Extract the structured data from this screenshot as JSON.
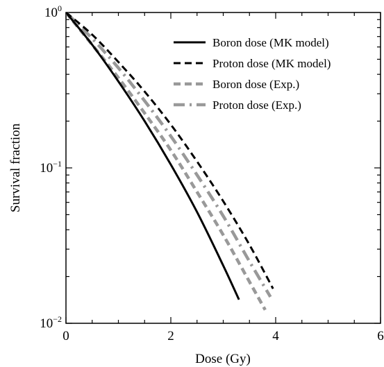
{
  "chart_data": {
    "type": "line",
    "title": "",
    "xlabel": "Dose (Gy)",
    "ylabel": "Survival fraction",
    "xlim": [
      0,
      6
    ],
    "ylim": [
      0.01,
      1
    ],
    "yscale": "log",
    "grid": false,
    "legend_position": "top-right",
    "x_ticks": [
      {
        "value": 0,
        "label": "0"
      },
      {
        "value": 2,
        "label": "2"
      },
      {
        "value": 4,
        "label": "4"
      },
      {
        "value": 6,
        "label": "6"
      }
    ],
    "y_ticks": [
      {
        "value": 1,
        "base": "10",
        "exp": "0"
      },
      {
        "value": 0.1,
        "base": "10",
        "exp": "−1"
      },
      {
        "value": 0.01,
        "base": "10",
        "exp": "−2"
      }
    ],
    "series": [
      {
        "name": "Boron dose (MK model)",
        "color": "#000000",
        "dash": "solid",
        "x": [
          0,
          0.5,
          1.0,
          1.5,
          2.0,
          2.5,
          3.0,
          3.3
        ],
        "y": [
          1.0,
          0.62,
          0.36,
          0.2,
          0.105,
          0.052,
          0.0235,
          0.0142
        ]
      },
      {
        "name": "Proton dose (MK model)",
        "color": "#000000",
        "dash": "dashed",
        "x": [
          0,
          0.5,
          1.0,
          1.5,
          2.0,
          2.5,
          3.0,
          3.5,
          3.95
        ],
        "y": [
          1.0,
          0.72,
          0.48,
          0.31,
          0.19,
          0.11,
          0.061,
          0.032,
          0.0167
        ]
      },
      {
        "name": "Boron dose (Exp.)",
        "color": "#999999",
        "dash": "dashed",
        "x": [
          0,
          0.5,
          1.0,
          1.5,
          2.0,
          2.5,
          3.0,
          3.5,
          3.8
        ],
        "y": [
          1.0,
          0.62,
          0.38,
          0.225,
          0.13,
          0.07,
          0.037,
          0.0185,
          0.0122
        ]
      },
      {
        "name": "Proton dose (Exp.)",
        "color": "#999999",
        "dash": "dashdot",
        "x": [
          0,
          0.5,
          1.0,
          1.5,
          2.0,
          2.5,
          3.0,
          3.5,
          3.9
        ],
        "y": [
          1.0,
          0.68,
          0.44,
          0.27,
          0.16,
          0.09,
          0.049,
          0.025,
          0.0148
        ]
      }
    ]
  }
}
